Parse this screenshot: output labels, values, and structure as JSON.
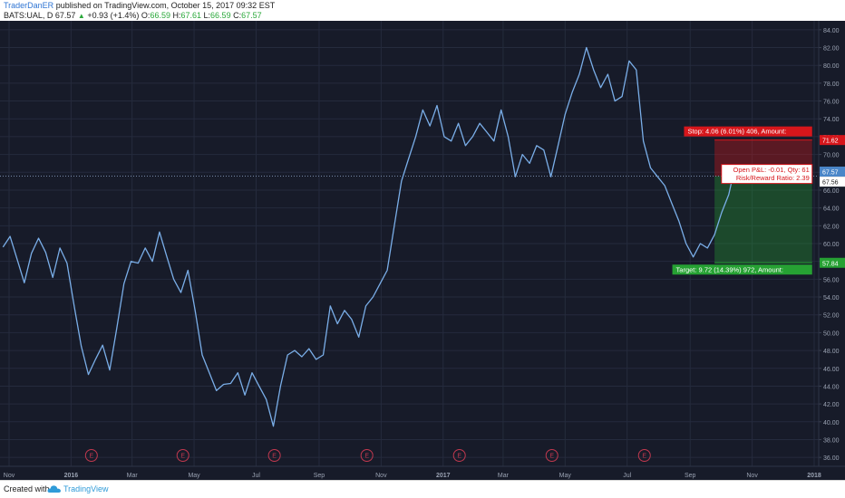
{
  "header": {
    "author": "TraderDanER",
    "published_text": "published on TradingView.com, October 15, 2017 09:32 EST",
    "symbol_line": "BATS:UAL, D",
    "last": "67.57",
    "up_glyph": "▲",
    "change": "+0.93 (+1.4%)",
    "o_label": "O:",
    "o_value": "66.59",
    "h_label": "H:",
    "h_value": "67.61",
    "l_label": "L:",
    "l_value": "66.59",
    "c_label": "C:",
    "c_value": "67.57"
  },
  "footer": {
    "created_with": "Created with",
    "brand": "TradingView",
    "brand_icon": "tradingview-cloud-icon"
  },
  "colors": {
    "background": "#171b29",
    "line": "#7aaee8",
    "grid": "#252b3d",
    "stop": "#d6161b",
    "target": "#26a133",
    "last_price": "#4a86c8"
  },
  "chart_data": {
    "type": "line",
    "symbol": "BATS:UAL",
    "interval": "D",
    "ylim": [
      35,
      85
    ],
    "y_ticks": [
      "84.00",
      "82.00",
      "80.00",
      "78.00",
      "76.00",
      "74.00",
      "72.00",
      "70.00",
      "68.00",
      "66.00",
      "64.00",
      "62.00",
      "60.00",
      "58.00",
      "56.00",
      "54.00",
      "52.00",
      "50.00",
      "48.00",
      "46.00",
      "44.00",
      "42.00",
      "40.00",
      "38.00",
      "36.00"
    ],
    "x_ticks": [
      {
        "label": "Nov",
        "date": "2015-11-01"
      },
      {
        "label": "2016",
        "date": "2016-01-01",
        "bold": true
      },
      {
        "label": "Mar",
        "date": "2016-03-01"
      },
      {
        "label": "May",
        "date": "2016-05-01"
      },
      {
        "label": "Jul",
        "date": "2016-07-01"
      },
      {
        "label": "Sep",
        "date": "2016-09-01"
      },
      {
        "label": "Nov",
        "date": "2016-11-01"
      },
      {
        "label": "2017",
        "date": "2017-01-01",
        "bold": true
      },
      {
        "label": "Mar",
        "date": "2017-03-01"
      },
      {
        "label": "May",
        "date": "2017-05-01"
      },
      {
        "label": "Jul",
        "date": "2017-07-01"
      },
      {
        "label": "Sep",
        "date": "2017-09-01"
      },
      {
        "label": "Nov",
        "date": "2017-11-01"
      },
      {
        "label": "2018",
        "date": "2018-01-01",
        "bold": true
      }
    ],
    "earnings_marker": "E",
    "earnings_dates": [
      "2016-01-21",
      "2016-04-20",
      "2016-07-19",
      "2016-10-18",
      "2017-01-17",
      "2017-04-18",
      "2017-07-18"
    ],
    "series": [
      {
        "x": [
          "2015-10-26",
          "2015-11-02",
          "2015-11-09",
          "2015-11-16",
          "2015-11-23",
          "2015-11-30",
          "2015-12-07",
          "2015-12-14",
          "2015-12-21",
          "2015-12-28",
          "2016-01-04",
          "2016-01-11",
          "2016-01-18",
          "2016-01-25",
          "2016-02-01",
          "2016-02-08",
          "2016-02-15",
          "2016-02-22",
          "2016-02-29",
          "2016-03-07",
          "2016-03-14",
          "2016-03-21",
          "2016-03-28",
          "2016-04-04",
          "2016-04-11",
          "2016-04-18",
          "2016-04-25",
          "2016-05-02",
          "2016-05-09",
          "2016-05-16",
          "2016-05-23",
          "2016-05-30",
          "2016-06-06",
          "2016-06-13",
          "2016-06-20",
          "2016-06-27",
          "2016-07-04",
          "2016-07-11",
          "2016-07-18",
          "2016-07-25",
          "2016-08-01",
          "2016-08-08",
          "2016-08-15",
          "2016-08-22",
          "2016-08-29",
          "2016-09-05",
          "2016-09-12",
          "2016-09-19",
          "2016-09-26",
          "2016-10-03",
          "2016-10-10",
          "2016-10-17",
          "2016-10-24",
          "2016-10-31",
          "2016-11-07",
          "2016-11-14",
          "2016-11-21",
          "2016-11-28",
          "2016-12-05",
          "2016-12-12",
          "2016-12-19",
          "2016-12-26",
          "2017-01-02",
          "2017-01-09",
          "2017-01-16",
          "2017-01-23",
          "2017-01-30",
          "2017-02-06",
          "2017-02-13",
          "2017-02-20",
          "2017-02-27",
          "2017-03-06",
          "2017-03-13",
          "2017-03-20",
          "2017-03-27",
          "2017-04-03",
          "2017-04-10",
          "2017-04-17",
          "2017-04-24",
          "2017-05-01",
          "2017-05-08",
          "2017-05-15",
          "2017-05-22",
          "2017-05-29",
          "2017-06-05",
          "2017-06-12",
          "2017-06-19",
          "2017-06-26",
          "2017-07-03",
          "2017-07-10",
          "2017-07-17",
          "2017-07-24",
          "2017-07-31",
          "2017-08-07",
          "2017-08-14",
          "2017-08-21",
          "2017-08-28",
          "2017-09-04",
          "2017-09-11",
          "2017-09-18",
          "2017-09-25",
          "2017-10-02",
          "2017-10-09",
          "2017-10-13"
        ],
        "values": [
          59.6,
          60.8,
          58.2,
          55.6,
          58.9,
          60.6,
          59.0,
          56.2,
          59.5,
          57.8,
          53.0,
          48.5,
          45.3,
          47.0,
          48.6,
          45.8,
          50.5,
          55.5,
          58.0,
          57.8,
          59.5,
          58.0,
          61.3,
          58.6,
          56.0,
          54.5,
          57.0,
          52.5,
          47.5,
          45.5,
          43.5,
          44.2,
          44.3,
          45.5,
          43.0,
          45.5,
          44.0,
          42.5,
          39.5,
          44.0,
          47.5,
          48.0,
          47.3,
          48.2,
          47.0,
          47.5,
          53.0,
          51.0,
          52.5,
          51.5,
          49.5,
          53.0,
          54.0,
          55.5,
          57.0,
          62.0,
          67.0,
          69.5,
          72.0,
          75.0,
          73.2,
          75.5,
          72.0,
          71.5,
          73.5,
          71.0,
          72.0,
          73.5,
          72.5,
          71.5,
          75.0,
          72.0,
          67.5,
          70.0,
          69.0,
          71.0,
          70.5,
          67.5,
          71.0,
          74.5,
          77.0,
          79.0,
          82.0,
          79.5,
          77.5,
          79.0,
          76.0,
          76.5,
          80.5,
          79.5,
          71.5,
          68.5,
          67.5,
          66.5,
          64.5,
          62.5,
          60.0,
          58.5,
          60.0,
          59.5,
          61.0,
          63.5,
          65.5,
          67.57
        ]
      }
    ],
    "last_price": 67.57,
    "position": {
      "type": "long",
      "entry": 67.56,
      "stop": 71.62,
      "target": 57.84,
      "start": "2017-09-25",
      "end": "2017-12-30",
      "stop_label": "Stop: 4.06 (6.01%) 406, Amount:",
      "target_label": "Target: 9.72 (14.39%) 972, Amount:",
      "pnl_label": "Open P&L: -0.01, Qty: 61",
      "rr_label": "Risk/Reward Ratio: 2.39",
      "stop_price_label": "71.62",
      "target_price_label": "57.84",
      "entry_price_label": "67.56",
      "last_price_label": "67.57"
    }
  }
}
